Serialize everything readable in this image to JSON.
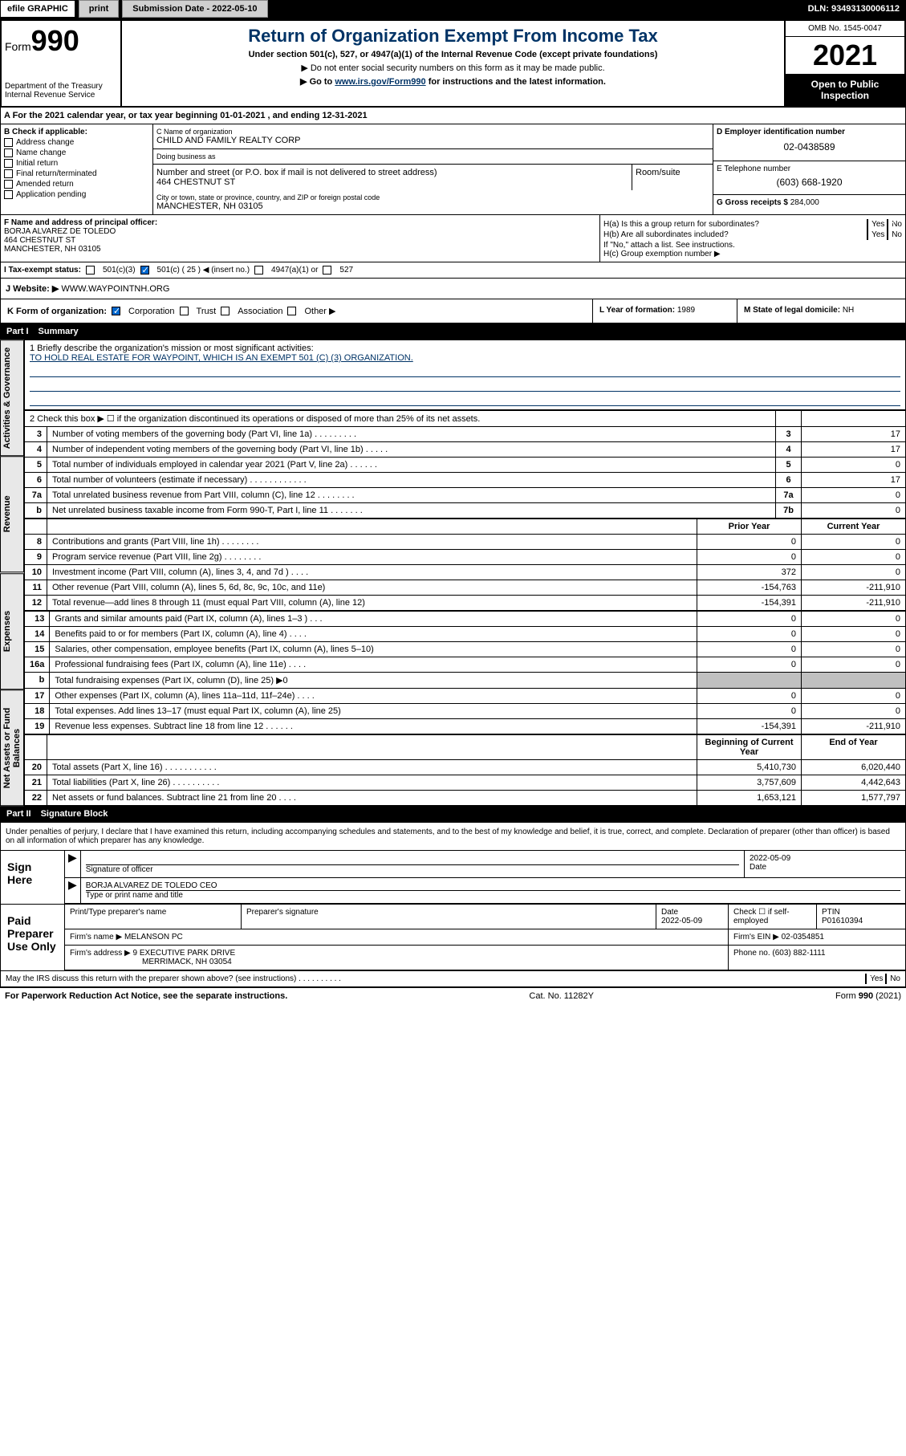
{
  "topbar": {
    "efile": "efile GRAPHIC",
    "print": "print",
    "sub_date_label": "Submission Date - ",
    "sub_date": "2022-05-10",
    "dln": "DLN: 93493130006112"
  },
  "header": {
    "form_label": "Form",
    "form_num": "990",
    "dept": "Department of the Treasury\nInternal Revenue Service",
    "title": "Return of Organization Exempt From Income Tax",
    "sub1": "Under section 501(c), 527, or 4947(a)(1) of the Internal Revenue Code (except private foundations)",
    "sub2": "▶ Do not enter social security numbers on this form as it may be made public.",
    "sub3_pre": "▶ Go to ",
    "sub3_link": "www.irs.gov/Form990",
    "sub3_post": " for instructions and the latest information.",
    "omb": "OMB No. 1545-0047",
    "year": "2021",
    "open": "Open to Public Inspection"
  },
  "row_a": "A For the 2021 calendar year, or tax year beginning 01-01-2021   , and ending 12-31-2021",
  "section_b": {
    "label": "B Check if applicable:",
    "items": [
      "Address change",
      "Name change",
      "Initial return",
      "Final return/terminated",
      "Amended return",
      "Application pending"
    ]
  },
  "section_c": {
    "name_lbl": "C Name of organization",
    "name": "CHILD AND FAMILY REALTY CORP",
    "dba_lbl": "Doing business as",
    "dba": "",
    "street_lbl": "Number and street (or P.O. box if mail is not delivered to street address)",
    "street": "464 CHESTNUT ST",
    "room_lbl": "Room/suite",
    "city_lbl": "City or town, state or province, country, and ZIP or foreign postal code",
    "city": "MANCHESTER, NH   03105"
  },
  "section_d": {
    "lbl": "D Employer identification number",
    "val": "02-0438589"
  },
  "section_e": {
    "lbl": "E Telephone number",
    "val": "(603) 668-1920"
  },
  "section_g": {
    "lbl": "G Gross receipts $",
    "val": "284,000"
  },
  "section_f": {
    "lbl": "F Name and address of principal officer:",
    "name": "BORJA ALVAREZ DE TOLEDO",
    "addr1": "464 CHESTNUT ST",
    "addr2": "MANCHESTER, NH   03105"
  },
  "section_h": {
    "ha": "H(a)  Is this a group return for subordinates?",
    "hb": "H(b)  Are all subordinates included?",
    "hb_note": "If \"No,\" attach a list. See instructions.",
    "hc": "H(c)  Group exemption number ▶",
    "yes": "Yes",
    "no": "No"
  },
  "row_i": {
    "lbl": "I   Tax-exempt status:",
    "opts": [
      "501(c)(3)",
      "501(c) ( 25 ) ◀ (insert no.)",
      "4947(a)(1) or",
      "527"
    ]
  },
  "row_j": {
    "lbl": "J   Website: ▶",
    "val": "WWW.WAYPOINTNH.ORG"
  },
  "row_k": {
    "lbl": "K Form of organization:",
    "opts": [
      "Corporation",
      "Trust",
      "Association",
      "Other ▶"
    ]
  },
  "row_l": {
    "lbl": "L Year of formation:",
    "val": "1989"
  },
  "row_m": {
    "lbl": "M State of legal domicile:",
    "val": "NH"
  },
  "part1": {
    "header_num": "Part I",
    "header_txt": "Summary",
    "governance_label": "Activities & Governance",
    "revenue_label": "Revenue",
    "expenses_label": "Expenses",
    "netassets_label": "Net Assets or Fund Balances",
    "line1_lbl": "1   Briefly describe the organization's mission or most significant activities:",
    "line1_val": "TO HOLD REAL ESTATE FOR WAYPOINT, WHICH IS AN EXEMPT 501 (C) (3) ORGANIZATION.",
    "line2": "2   Check this box ▶ ☐  if the organization discontinued its operations or disposed of more than 25% of its net assets.",
    "rows_gov": [
      {
        "n": "3",
        "d": "Number of voting members of the governing body (Part VI, line 1a)   .    .    .    .    .    .    .    .    .",
        "b": "3",
        "v": "17"
      },
      {
        "n": "4",
        "d": "Number of independent voting members of the governing body (Part VI, line 1b)    .    .    .    .    .",
        "b": "4",
        "v": "17"
      },
      {
        "n": "5",
        "d": "Total number of individuals employed in calendar year 2021 (Part V, line 2a)    .    .    .    .    .    .",
        "b": "5",
        "v": "0"
      },
      {
        "n": "6",
        "d": "Total number of volunteers (estimate if necessary)    .    .    .    .    .    .    .    .    .    .    .    .",
        "b": "6",
        "v": "17"
      },
      {
        "n": "7a",
        "d": "Total unrelated business revenue from Part VIII, column (C), line 12   .    .    .    .    .    .    .    .",
        "b": "7a",
        "v": "0"
      },
      {
        "n": "b",
        "d": "Net unrelated business taxable income from Form 990-T, Part I, line 11   .    .    .    .    .    .    .",
        "b": "7b",
        "v": "0"
      }
    ],
    "col_prior": "Prior Year",
    "col_current": "Current Year",
    "rows_rev": [
      {
        "n": "8",
        "d": "Contributions and grants (Part VIII, line 1h)    .    .    .    .    .    .    .    .",
        "p": "0",
        "c": "0"
      },
      {
        "n": "9",
        "d": "Program service revenue (Part VIII, line 2g)    .    .    .    .    .    .    .    .",
        "p": "0",
        "c": "0"
      },
      {
        "n": "10",
        "d": "Investment income (Part VIII, column (A), lines 3, 4, and 7d )    .    .    .    .",
        "p": "372",
        "c": "0"
      },
      {
        "n": "11",
        "d": "Other revenue (Part VIII, column (A), lines 5, 6d, 8c, 9c, 10c, and 11e)",
        "p": "-154,763",
        "c": "-211,910"
      },
      {
        "n": "12",
        "d": "Total revenue—add lines 8 through 11 (must equal Part VIII, column (A), line 12)",
        "p": "-154,391",
        "c": "-211,910"
      }
    ],
    "rows_exp": [
      {
        "n": "13",
        "d": "Grants and similar amounts paid (Part IX, column (A), lines 1–3 )    .    .    .",
        "p": "0",
        "c": "0"
      },
      {
        "n": "14",
        "d": "Benefits paid to or for members (Part IX, column (A), line 4)    .    .    .    .",
        "p": "0",
        "c": "0"
      },
      {
        "n": "15",
        "d": "Salaries, other compensation, employee benefits (Part IX, column (A), lines 5–10)",
        "p": "0",
        "c": "0"
      },
      {
        "n": "16a",
        "d": "Professional fundraising fees (Part IX, column (A), line 11e)    .    .    .    .",
        "p": "0",
        "c": "0"
      },
      {
        "n": "b",
        "d": "Total fundraising expenses (Part IX, column (D), line 25) ▶0",
        "p": "",
        "c": "",
        "shaded": true
      },
      {
        "n": "17",
        "d": "Other expenses (Part IX, column (A), lines 11a–11d, 11f–24e)    .    .    .    .",
        "p": "0",
        "c": "0"
      },
      {
        "n": "18",
        "d": "Total expenses. Add lines 13–17 (must equal Part IX, column (A), line 25)",
        "p": "0",
        "c": "0"
      },
      {
        "n": "19",
        "d": "Revenue less expenses. Subtract line 18 from line 12    .    .    .    .    .    .",
        "p": "-154,391",
        "c": "-211,910"
      }
    ],
    "col_begin": "Beginning of Current Year",
    "col_end": "End of Year",
    "rows_net": [
      {
        "n": "20",
        "d": "Total assets (Part X, line 16)    .    .    .    .    .    .    .    .    .    .    .",
        "p": "5,410,730",
        "c": "6,020,440"
      },
      {
        "n": "21",
        "d": "Total liabilities (Part X, line 26)    .    .    .    .    .    .    .    .    .    .",
        "p": "3,757,609",
        "c": "4,442,643"
      },
      {
        "n": "22",
        "d": "Net assets or fund balances. Subtract line 21 from line 20    .    .    .    .",
        "p": "1,653,121",
        "c": "1,577,797"
      }
    ]
  },
  "part2": {
    "header_num": "Part II",
    "header_txt": "Signature Block",
    "decl": "Under penalties of perjury, I declare that I have examined this return, including accompanying schedules and statements, and to the best of my knowledge and belief, it is true, correct, and complete. Declaration of preparer (other than officer) is based on all information of which preparer has any knowledge.",
    "sign_here": "Sign Here",
    "sig_officer": "Signature of officer",
    "sig_date": "2022-05-09",
    "date_lbl": "Date",
    "officer_name": "BORJA ALVAREZ DE TOLEDO  CEO",
    "officer_lbl": "Type or print name and title",
    "paid_prep": "Paid Preparer Use Only",
    "prep_name_lbl": "Print/Type preparer's name",
    "prep_sig_lbl": "Preparer's signature",
    "prep_date_lbl": "Date",
    "prep_date": "2022-05-09",
    "prep_check_lbl": "Check ☐ if self-employed",
    "ptin_lbl": "PTIN",
    "ptin": "P01610394",
    "firm_name_lbl": "Firm's name      ▶",
    "firm_name": "MELANSON PC",
    "firm_ein_lbl": "Firm's EIN ▶",
    "firm_ein": "02-0354851",
    "firm_addr_lbl": "Firm's address ▶",
    "firm_addr1": "9 EXECUTIVE PARK DRIVE",
    "firm_addr2": "MERRIMACK, NH   03054",
    "firm_phone_lbl": "Phone no.",
    "firm_phone": "(603) 882-1111",
    "discuss": "May the IRS discuss this return with the preparer shown above? (see instructions)    .    .    .    .    .    .    .    .    .    .",
    "yes": "Yes",
    "no": "No"
  },
  "footer": {
    "paperwork": "For Paperwork Reduction Act Notice, see the separate instructions.",
    "cat": "Cat. No. 11282Y",
    "form": "Form 990 (2021)"
  }
}
